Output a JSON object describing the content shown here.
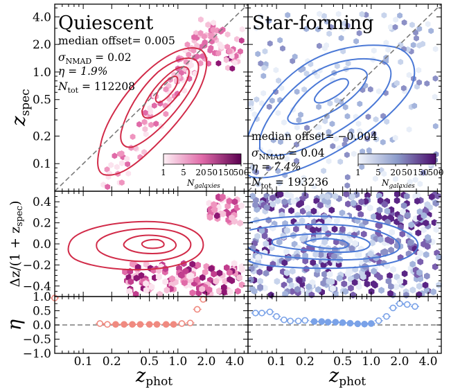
{
  "figure": {
    "ylabel_top": "z",
    "ylabel_top_sub": "spec",
    "ylabel_mid": "Δz/(1 + z",
    "ylabel_mid_sub": "spec",
    "ylabel_mid_close": ")",
    "ylabel_bottom": "η",
    "xlabel": "z",
    "xlabel_sub": "phot",
    "panels": [
      {
        "title": "Quiescent",
        "stats": {
          "median_offset_label": "median offset= 0.005",
          "sigma_symbol": "σ",
          "sigma_sub": "NMAD",
          "sigma_value": " = 0.02",
          "eta_label": "η = 1.9%",
          "n_symbol": "N",
          "n_sub": "tot",
          "n_value": " = 112208"
        },
        "colorbar": {
          "ticks": [
            "1",
            "5",
            "20",
            "50",
            "150",
            "500"
          ],
          "label": "N",
          "label_sub": "galaxies"
        },
        "line_color": "#d12a48",
        "marker_color": "#f08a80"
      },
      {
        "title": "Star-forming",
        "stats": {
          "median_offset_label": "median offset= −0.004",
          "sigma_symbol": "σ",
          "sigma_sub": "NMAD",
          "sigma_value": " = 0.04",
          "eta_label": "η = 7.4%",
          "n_symbol": "N",
          "n_sub": "tot",
          "n_value": " = 193236"
        },
        "colorbar": {
          "ticks": [
            "1",
            "5",
            "20",
            "50",
            "150",
            "500"
          ],
          "label": "N",
          "label_sub": "galaxies"
        },
        "line_color": "#4a78d6",
        "marker_color": "#7aa2e8"
      }
    ]
  },
  "chart_data": [
    {
      "type": "scatter",
      "panel": "top",
      "xscale": "log",
      "yscale": "log",
      "xlim": [
        0.05,
        5.5
      ],
      "ylim": [
        0.05,
        5.5
      ],
      "x_ticks": [
        "0.1",
        "0.2",
        "0.5",
        "1.0",
        "2.0",
        "4.0"
      ],
      "x_tick_values": [
        0.1,
        0.2,
        0.5,
        1.0,
        2.0,
        4.0
      ],
      "y_ticks": [
        "0.1",
        "0.2",
        "0.5",
        "1.0",
        "2.0",
        "4.0"
      ],
      "y_tick_values": [
        0.1,
        0.2,
        0.5,
        1.0,
        2.0,
        4.0
      ],
      "one_to_one_line": true
    },
    {
      "type": "scatter",
      "panel": "middle",
      "xscale": "log",
      "xlim": [
        0.05,
        5.5
      ],
      "ylim": [
        -0.5,
        0.5
      ],
      "y_ticks": [
        "0.4",
        "0.2",
        "0.0",
        "−0.2",
        "−0.4"
      ],
      "y_tick_values": [
        0.4,
        0.2,
        0.0,
        -0.2,
        -0.4
      ],
      "zero_line": false
    },
    {
      "type": "line",
      "panel": "bottom",
      "xscale": "log",
      "xlim": [
        0.05,
        5.5
      ],
      "ylim": [
        -1.0,
        1.0
      ],
      "y_ticks": [
        "1.0",
        "0.5",
        "0.0",
        "−0.5",
        "−1.0"
      ],
      "y_tick_values": [
        1.0,
        0.5,
        0.0,
        -0.5,
        -1.0
      ],
      "zero_line": true,
      "series": [
        {
          "name": "Quiescent",
          "x": [
            0.05,
            0.15,
            0.18,
            0.22,
            0.27,
            0.33,
            0.4,
            0.5,
            0.6,
            0.75,
            0.9,
            1.1,
            1.35,
            1.6,
            1.85
          ],
          "y": [
            0.95,
            0.05,
            0.02,
            0.02,
            0.02,
            0.02,
            0.02,
            0.02,
            0.02,
            0.02,
            0.02,
            0.05,
            0.07,
            0.55,
            0.9
          ],
          "filled": [
            false,
            false,
            false,
            true,
            true,
            true,
            true,
            true,
            true,
            true,
            true,
            false,
            false,
            false,
            false
          ]
        },
        {
          "name": "Star-forming",
          "x": [
            0.06,
            0.07,
            0.085,
            0.1,
            0.12,
            0.14,
            0.17,
            0.2,
            0.25,
            0.3,
            0.35,
            0.42,
            0.5,
            0.6,
            0.72,
            0.85,
            1.0,
            1.2,
            1.45,
            1.7,
            2.0,
            2.4,
            2.9
          ],
          "y": [
            0.42,
            0.42,
            0.46,
            0.3,
            0.18,
            0.14,
            0.14,
            0.16,
            0.12,
            0.12,
            0.1,
            0.1,
            0.08,
            0.06,
            0.04,
            0.03,
            0.05,
            0.15,
            0.3,
            0.6,
            0.75,
            0.72,
            0.65
          ],
          "filled": [
            false,
            false,
            false,
            false,
            false,
            false,
            false,
            false,
            true,
            true,
            true,
            true,
            true,
            true,
            true,
            true,
            true,
            false,
            false,
            false,
            false,
            false,
            false
          ]
        }
      ]
    }
  ]
}
